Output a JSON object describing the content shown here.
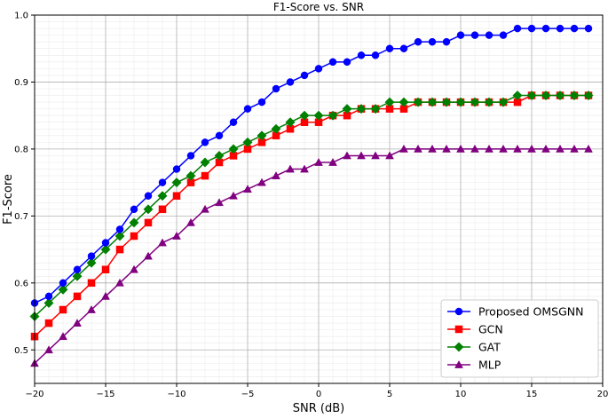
{
  "chart_data": {
    "type": "line",
    "title": "F1-Score vs. SNR",
    "xlabel": "SNR (dB)",
    "ylabel": "F1-Score",
    "xlim": [
      -20,
      20
    ],
    "ylim": [
      0.45,
      1.0
    ],
    "xticks": [
      -20,
      -15,
      -10,
      -5,
      0,
      5,
      10,
      15,
      20
    ],
    "yticks": [
      0.5,
      0.6,
      0.7,
      0.8,
      0.9,
      1.0
    ],
    "ytick_labels": [
      "0.5",
      "0.6",
      "0.7",
      "0.8",
      "0.9",
      "1.0"
    ],
    "grid": true,
    "minor_grid": true,
    "legend_position": "bottom-right",
    "x": [
      -20,
      -19,
      -18,
      -17,
      -16,
      -15,
      -14,
      -13,
      -12,
      -11,
      -10,
      -9,
      -8,
      -7,
      -6,
      -5,
      -4,
      -3,
      -2,
      -1,
      0,
      1,
      2,
      3,
      4,
      5,
      6,
      7,
      8,
      9,
      10,
      11,
      12,
      13,
      14,
      15,
      16,
      17,
      18,
      19
    ],
    "series": [
      {
        "name": "Proposed OMSGNN",
        "color": "#0000ff",
        "marker": "circle",
        "values": [
          0.57,
          0.58,
          0.6,
          0.62,
          0.64,
          0.66,
          0.68,
          0.71,
          0.73,
          0.75,
          0.77,
          0.79,
          0.81,
          0.82,
          0.84,
          0.86,
          0.87,
          0.89,
          0.9,
          0.91,
          0.92,
          0.93,
          0.93,
          0.94,
          0.94,
          0.95,
          0.95,
          0.96,
          0.96,
          0.96,
          0.97,
          0.97,
          0.97,
          0.97,
          0.98,
          0.98,
          0.98,
          0.98,
          0.98,
          0.98
        ]
      },
      {
        "name": "GCN",
        "color": "#ff0000",
        "marker": "square",
        "values": [
          0.52,
          0.54,
          0.56,
          0.58,
          0.6,
          0.62,
          0.65,
          0.67,
          0.69,
          0.71,
          0.73,
          0.75,
          0.76,
          0.78,
          0.79,
          0.8,
          0.81,
          0.82,
          0.83,
          0.84,
          0.84,
          0.85,
          0.85,
          0.86,
          0.86,
          0.86,
          0.86,
          0.87,
          0.87,
          0.87,
          0.87,
          0.87,
          0.87,
          0.87,
          0.87,
          0.88,
          0.88,
          0.88,
          0.88,
          0.88
        ]
      },
      {
        "name": "GAT",
        "color": "#008000",
        "marker": "diamond",
        "values": [
          0.55,
          0.57,
          0.59,
          0.61,
          0.63,
          0.65,
          0.67,
          0.69,
          0.71,
          0.73,
          0.75,
          0.76,
          0.78,
          0.79,
          0.8,
          0.81,
          0.82,
          0.83,
          0.84,
          0.85,
          0.85,
          0.85,
          0.86,
          0.86,
          0.86,
          0.87,
          0.87,
          0.87,
          0.87,
          0.87,
          0.87,
          0.87,
          0.87,
          0.87,
          0.88,
          0.88,
          0.88,
          0.88,
          0.88,
          0.88
        ]
      },
      {
        "name": "MLP",
        "color": "#800080",
        "marker": "triangle",
        "values": [
          0.48,
          0.5,
          0.52,
          0.54,
          0.56,
          0.58,
          0.6,
          0.62,
          0.64,
          0.66,
          0.67,
          0.69,
          0.71,
          0.72,
          0.73,
          0.74,
          0.75,
          0.76,
          0.77,
          0.77,
          0.78,
          0.78,
          0.79,
          0.79,
          0.79,
          0.79,
          0.8,
          0.8,
          0.8,
          0.8,
          0.8,
          0.8,
          0.8,
          0.8,
          0.8,
          0.8,
          0.8,
          0.8,
          0.8,
          0.8
        ]
      }
    ]
  }
}
